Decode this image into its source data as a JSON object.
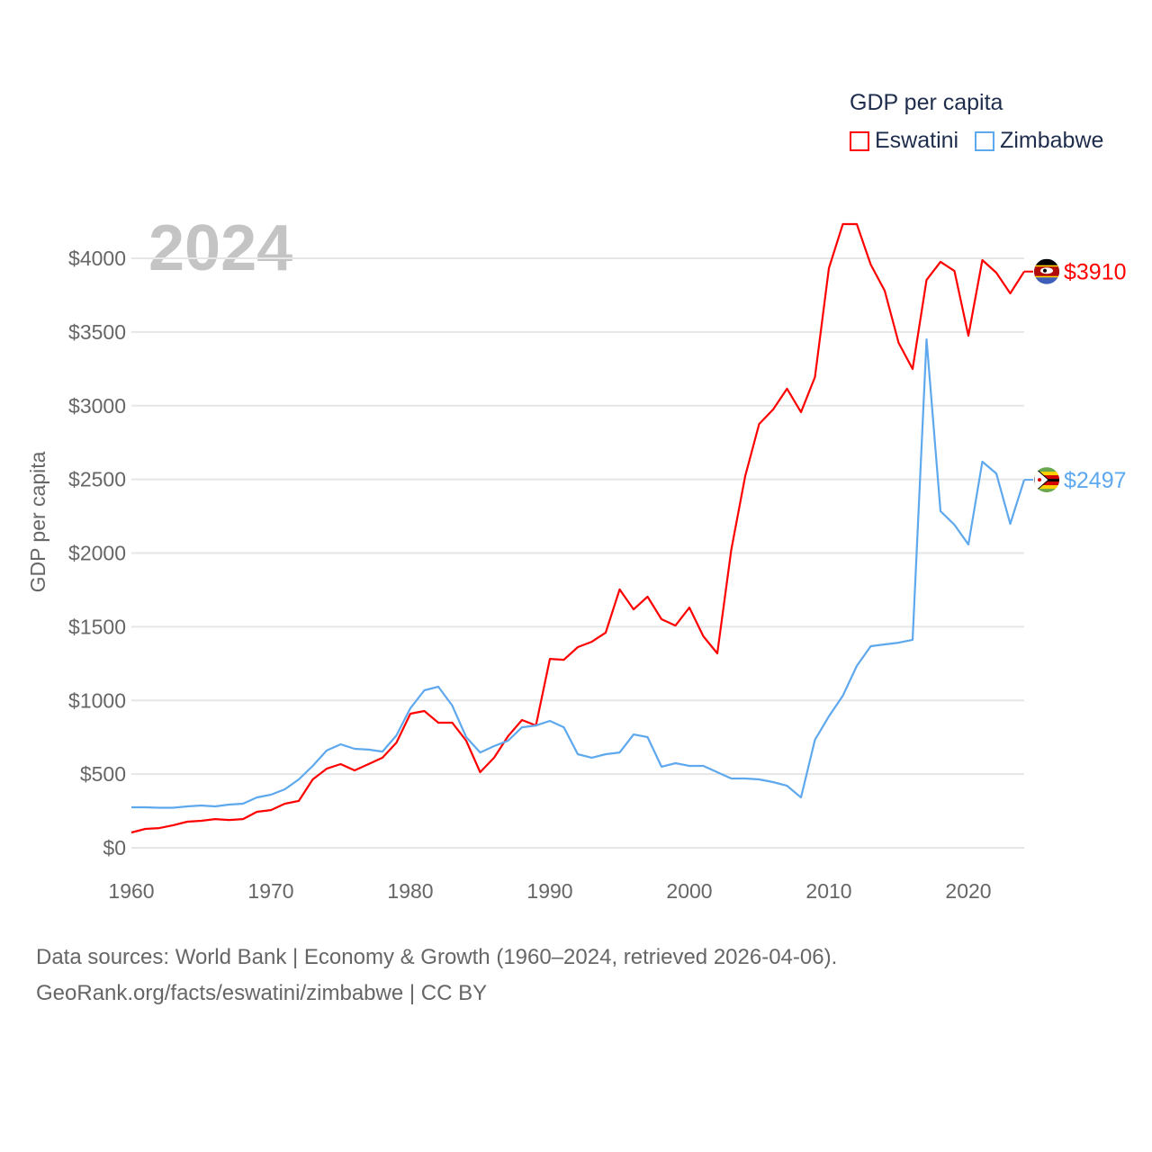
{
  "chart_data": {
    "type": "line",
    "title": "GDP per capita",
    "ylabel": "GDP per capita",
    "xlabel": "",
    "year_label": "2024",
    "xlim": [
      1960,
      2024
    ],
    "ylim": [
      0,
      4000
    ],
    "x_ticks": [
      "1960",
      "1970",
      "1980",
      "1990",
      "2000",
      "2010",
      "2020"
    ],
    "y_ticks": [
      "$0",
      "$500",
      "$1000",
      "$1500",
      "$2000",
      "$2500",
      "$3000",
      "$3500",
      "$4000"
    ],
    "grid": true,
    "legend_position": "top-right",
    "x": [
      1960,
      1961,
      1962,
      1963,
      1964,
      1965,
      1966,
      1967,
      1968,
      1969,
      1970,
      1971,
      1972,
      1973,
      1974,
      1975,
      1976,
      1977,
      1978,
      1979,
      1980,
      1981,
      1982,
      1983,
      1984,
      1985,
      1986,
      1987,
      1988,
      1989,
      1990,
      1991,
      1992,
      1993,
      1994,
      1995,
      1996,
      1997,
      1998,
      1999,
      2000,
      2001,
      2002,
      2003,
      2004,
      2005,
      2006,
      2007,
      2008,
      2009,
      2010,
      2011,
      2012,
      2013,
      2014,
      2015,
      2016,
      2017,
      2018,
      2019,
      2020,
      2021,
      2022,
      2023,
      2024
    ],
    "series": [
      {
        "name": "Eswatini",
        "color": "#ff0000",
        "end_label": "$3910",
        "values": [
          104,
          128,
          134,
          153,
          177,
          183,
          195,
          189,
          195,
          244,
          256,
          299,
          318,
          464,
          537,
          568,
          525,
          568,
          611,
          714,
          910,
          928,
          849,
          849,
          727,
          513,
          611,
          757,
          867,
          830,
          1282,
          1276,
          1362,
          1398,
          1460,
          1753,
          1618,
          1704,
          1551,
          1508,
          1630,
          1435,
          1319,
          2021,
          2522,
          2876,
          2974,
          3115,
          2956,
          3194,
          3933,
          4232,
          4232,
          3957,
          3780,
          3426,
          3249,
          3853,
          3976,
          3914,
          3475,
          3988,
          3902,
          3762,
          3910
        ]
      },
      {
        "name": "Zimbabwe",
        "color": "#5ea8ee",
        "end_label": "$2497",
        "values": [
          275,
          275,
          272,
          272,
          281,
          287,
          281,
          293,
          299,
          342,
          360,
          397,
          464,
          556,
          660,
          702,
          672,
          666,
          653,
          763,
          947,
          1069,
          1093,
          965,
          751,
          647,
          690,
          727,
          818,
          830,
          861,
          818,
          635,
          611,
          635,
          647,
          769,
          751,
          550,
          574,
          556,
          556,
          513,
          470,
          470,
          464,
          446,
          421,
          342,
          733,
          892,
          1032,
          1234,
          1368,
          1380,
          1392,
          1411,
          3450,
          2284,
          2192,
          2058,
          2620,
          2540,
          2198,
          2497
        ]
      }
    ]
  },
  "footer": {
    "line1": "Data sources: World Bank | Economy & Growth (1960–2024, retrieved 2026-04-06).",
    "line2": "GeoRank.org/facts/eswatini/zimbabwe | CC BY"
  }
}
